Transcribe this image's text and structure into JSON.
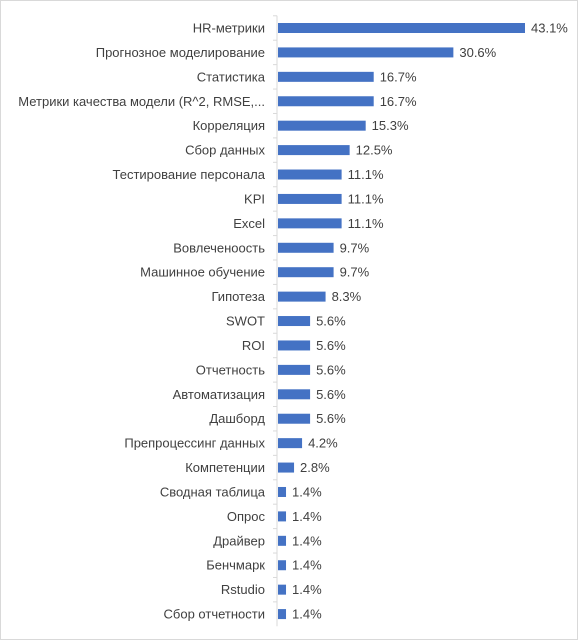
{
  "chart_data": {
    "type": "bar",
    "orientation": "horizontal",
    "categories": [
      "HR-метрики",
      "Прогнозное моделирование",
      "Статистика",
      "Метрики качества модели (R^2, RMSE,...",
      "Корреляция",
      "Сбор данных",
      "Тестирование персонала",
      "KPI",
      "Excel",
      "Вовлеченоость",
      "Машинное обучение",
      "Гипотеза",
      "SWOT",
      "ROI",
      "Отчетность",
      "Автоматизация",
      "Дашборд",
      "Препроцессинг данных",
      "Компетенции",
      "Сводная таблица",
      "Опрос",
      "Драйвер",
      "Бенчмарк",
      "Rstudio",
      "Сбор отчетности"
    ],
    "values": [
      43.1,
      30.6,
      16.7,
      16.7,
      15.3,
      12.5,
      11.1,
      11.1,
      11.1,
      9.7,
      9.7,
      8.3,
      5.6,
      5.6,
      5.6,
      5.6,
      5.6,
      4.2,
      2.8,
      1.4,
      1.4,
      1.4,
      1.4,
      1.4,
      1.4
    ],
    "value_labels": [
      "43.1%",
      "30.6%",
      "16.7%",
      "16.7%",
      "15.3%",
      "12.5%",
      "11.1%",
      "11.1%",
      "11.1%",
      "9.7%",
      "9.7%",
      "8.3%",
      "5.6%",
      "5.6%",
      "5.6%",
      "5.6%",
      "5.6%",
      "4.2%",
      "2.8%",
      "1.4%",
      "1.4%",
      "1.4%",
      "1.4%",
      "1.4%",
      "1.4%"
    ],
    "title": "",
    "xlabel": "",
    "ylabel": "",
    "xlim": [
      0,
      43.1
    ],
    "grid": false,
    "legend": "none",
    "bar_color": "#4472C4",
    "axis_color": "#d9d9d9"
  }
}
